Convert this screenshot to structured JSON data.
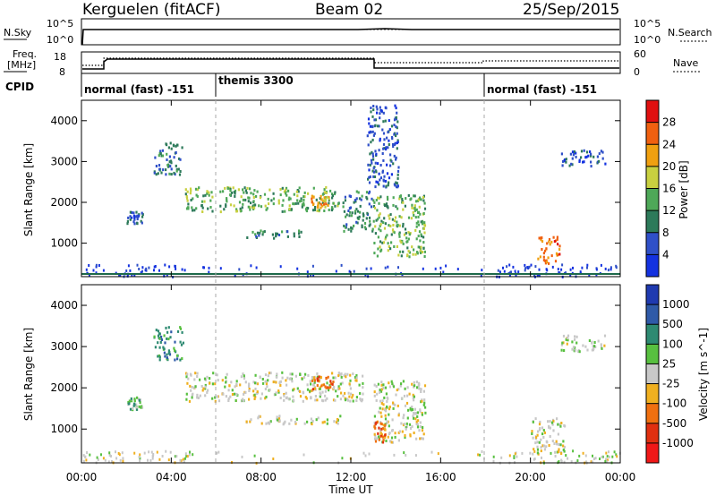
{
  "header": {
    "site": "Kerguelen (fitACF)",
    "beam": "Beam 02",
    "date": "25/Sep/2015"
  },
  "panel_labels": {
    "nsky": "N.Sky",
    "nsearch": "N.Search",
    "freq_line1": "Freq.",
    "freq_line2": "[MHz]",
    "nave": "Nave",
    "cpid": "CPID",
    "noise_ticks": [
      "10^5",
      "10^0"
    ],
    "freq_ticks": [
      "18",
      "8"
    ],
    "nave_ticks": [
      "60",
      "0"
    ]
  },
  "cpid_segments": [
    {
      "label": "normal (fast) -151",
      "start_h": 0
    },
    {
      "label": "themis 3300",
      "start_h": 6
    },
    {
      "label": "normal (fast) -151",
      "start_h": 18
    }
  ],
  "colors": {
    "power": [
      "#1432e0",
      "#2f50c8",
      "#2d7a5a",
      "#4ea858",
      "#c8d040",
      "#f0a010",
      "#f06010",
      "#e01010"
    ],
    "velocity": [
      "#1f3ab0",
      "#2f5aa8",
      "#2e8a72",
      "#58c040",
      "#c8c8c8",
      "#f0b020",
      "#f07010",
      "#e03010",
      "#f01818"
    ]
  },
  "chart_data": [
    {
      "type": "heatmap",
      "name": "Power panel",
      "xlabel": "",
      "ylabel": "Slant Range [km]",
      "xlim": [
        0,
        24
      ],
      "ylim": [
        180,
        4500
      ],
      "yticks": [
        "1000",
        "2000",
        "3000",
        "4000"
      ],
      "colorbar": {
        "label": "Power [dB]",
        "ticks": [
          "4",
          "8",
          "12",
          "16",
          "20",
          "24",
          "28"
        ]
      },
      "features": [
        {
          "t0": 3.2,
          "t1": 4.5,
          "r0": 2700,
          "r1": 3500,
          "level": 2
        },
        {
          "t0": 2.0,
          "t1": 2.7,
          "r0": 1500,
          "r1": 1800,
          "level": 1
        },
        {
          "t0": 4.6,
          "t1": 11.5,
          "r0": 1800,
          "r1": 2400,
          "level": 3
        },
        {
          "t0": 10.2,
          "t1": 11.0,
          "r0": 1900,
          "r1": 2200,
          "level": 5
        },
        {
          "t0": 7.3,
          "t1": 9.8,
          "r0": 1150,
          "r1": 1350,
          "level": 2
        },
        {
          "t0": 11.6,
          "t1": 13.0,
          "r0": 1300,
          "r1": 2300,
          "level": 2
        },
        {
          "t0": 13.0,
          "t1": 15.3,
          "r0": 700,
          "r1": 2200,
          "level": 3
        },
        {
          "t0": 12.7,
          "t1": 14.1,
          "r0": 2400,
          "r1": 4400,
          "level": 1
        },
        {
          "t0": 20.3,
          "t1": 21.3,
          "r0": 500,
          "r1": 1200,
          "level": 6
        },
        {
          "t0": 21.3,
          "t1": 23.3,
          "r0": 2900,
          "r1": 3300,
          "level": 1
        }
      ]
    },
    {
      "type": "heatmap",
      "name": "Velocity panel",
      "xlabel": "Time UT",
      "ylabel": "Slant Range [km]",
      "xlim": [
        0,
        24
      ],
      "ylim": [
        180,
        4500
      ],
      "xticks": [
        "00:00",
        "04:00",
        "08:00",
        "12:00",
        "16:00",
        "20:00",
        "00:00"
      ],
      "yticks": [
        "1000",
        "2000",
        "3000",
        "4000"
      ],
      "colorbar": {
        "label": "Velocity [m s^-1]",
        "ticks": [
          "1000",
          "500",
          "100",
          "25",
          "-25",
          "-100",
          "-500",
          "-1000"
        ]
      },
      "features": [
        {
          "t0": 3.2,
          "t1": 4.5,
          "r0": 2700,
          "r1": 3500,
          "level": 2
        },
        {
          "t0": 2.0,
          "t1": 2.7,
          "r0": 1500,
          "r1": 1800,
          "level": 3
        },
        {
          "t0": 4.6,
          "t1": 12.5,
          "r0": 1700,
          "r1": 2400,
          "level": 4
        },
        {
          "t0": 10.2,
          "t1": 11.2,
          "r0": 2000,
          "r1": 2300,
          "level": 6
        },
        {
          "t0": 7.3,
          "t1": 11.5,
          "r0": 1150,
          "r1": 1350,
          "level": 4
        },
        {
          "t0": 13.0,
          "t1": 15.3,
          "r0": 700,
          "r1": 2200,
          "level": 4
        },
        {
          "t0": 13.0,
          "t1": 13.5,
          "r0": 700,
          "r1": 1200,
          "level": 6
        },
        {
          "t0": 20.0,
          "t1": 21.5,
          "r0": 400,
          "r1": 1300,
          "level": 4
        },
        {
          "t0": 21.3,
          "t1": 23.3,
          "r0": 2900,
          "r1": 3300,
          "level": 4
        }
      ]
    }
  ],
  "axis_titles": {
    "time": "Time UT"
  }
}
